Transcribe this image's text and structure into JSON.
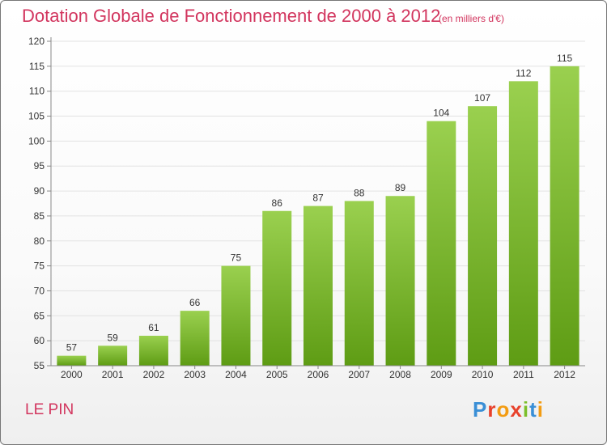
{
  "header": {
    "title": "Dotation Globale de Fonctionnement de 2000 à 2012",
    "unit": "(en milliers d'€)"
  },
  "footer": {
    "commune": "LE PIN",
    "brand_letters": [
      {
        "ch": "P",
        "color": "#3a8fd6"
      },
      {
        "ch": "r",
        "color": "#e8412b"
      },
      {
        "ch": "o",
        "color": "#f39c12"
      },
      {
        "ch": "x",
        "color": "#e8412b"
      },
      {
        "ch": "i",
        "color": "#7bbf2a"
      },
      {
        "ch": "t",
        "color": "#3a8fd6"
      },
      {
        "ch": "i",
        "color": "#f39c12"
      }
    ]
  },
  "colors": {
    "bar_top": "#9ad04f",
    "bar_bottom": "#5e9c14",
    "title": "#d2355e",
    "grid": "#e2e2e2",
    "axis": "#888888"
  },
  "chart_data": {
    "type": "bar",
    "title": "Dotation Globale de Fonctionnement de 2000 à 2012",
    "subtitle": "(en milliers d'€)",
    "xlabel": "",
    "ylabel": "",
    "categories": [
      "2000",
      "2001",
      "2002",
      "2003",
      "2004",
      "2005",
      "2006",
      "2007",
      "2008",
      "2009",
      "2010",
      "2011",
      "2012"
    ],
    "values": [
      57,
      59,
      61,
      66,
      75,
      86,
      87,
      88,
      89,
      104,
      107,
      112,
      115
    ],
    "ylim": [
      55,
      120
    ],
    "yticks": [
      55,
      60,
      65,
      70,
      75,
      80,
      85,
      90,
      95,
      100,
      105,
      110,
      115,
      120
    ],
    "grid": true,
    "legend": "none"
  }
}
